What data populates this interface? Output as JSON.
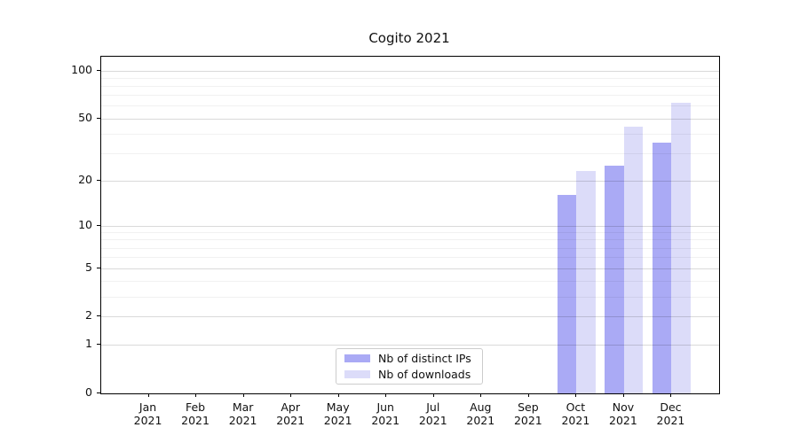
{
  "chart_data": {
    "type": "bar",
    "title": "Cogito 2021",
    "categories": [
      "Jan",
      "Feb",
      "Mar",
      "Apr",
      "May",
      "Jun",
      "Jul",
      "Aug",
      "Sep",
      "Oct",
      "Nov",
      "Dec"
    ],
    "category_year": "2021",
    "series": [
      {
        "name": "Nb of distinct IPs",
        "color": "#aaaaf5",
        "values": [
          0,
          0,
          0,
          0,
          0,
          0,
          0,
          0,
          0,
          16,
          25,
          35
        ]
      },
      {
        "name": "Nb of downloads",
        "color": "#dcdcf9",
        "values": [
          0,
          0,
          0,
          0,
          0,
          0,
          0,
          0,
          0,
          23,
          44,
          63
        ]
      }
    ],
    "yscale": "log1p",
    "ylim": [
      0,
      122
    ],
    "yticks": [
      0,
      1,
      2,
      5,
      10,
      20,
      50,
      100
    ],
    "yticks_minor": [
      3,
      4,
      6,
      7,
      8,
      9,
      30,
      40,
      60,
      70,
      80,
      90
    ],
    "grid": true,
    "grid_above_bars": true,
    "legend_position": "lower center",
    "colors": {
      "grid_major": "rgba(0,0,0,0.15)",
      "grid_minor": "rgba(0,0,0,0.055)",
      "axis": "#000000",
      "background": "#ffffff"
    }
  }
}
